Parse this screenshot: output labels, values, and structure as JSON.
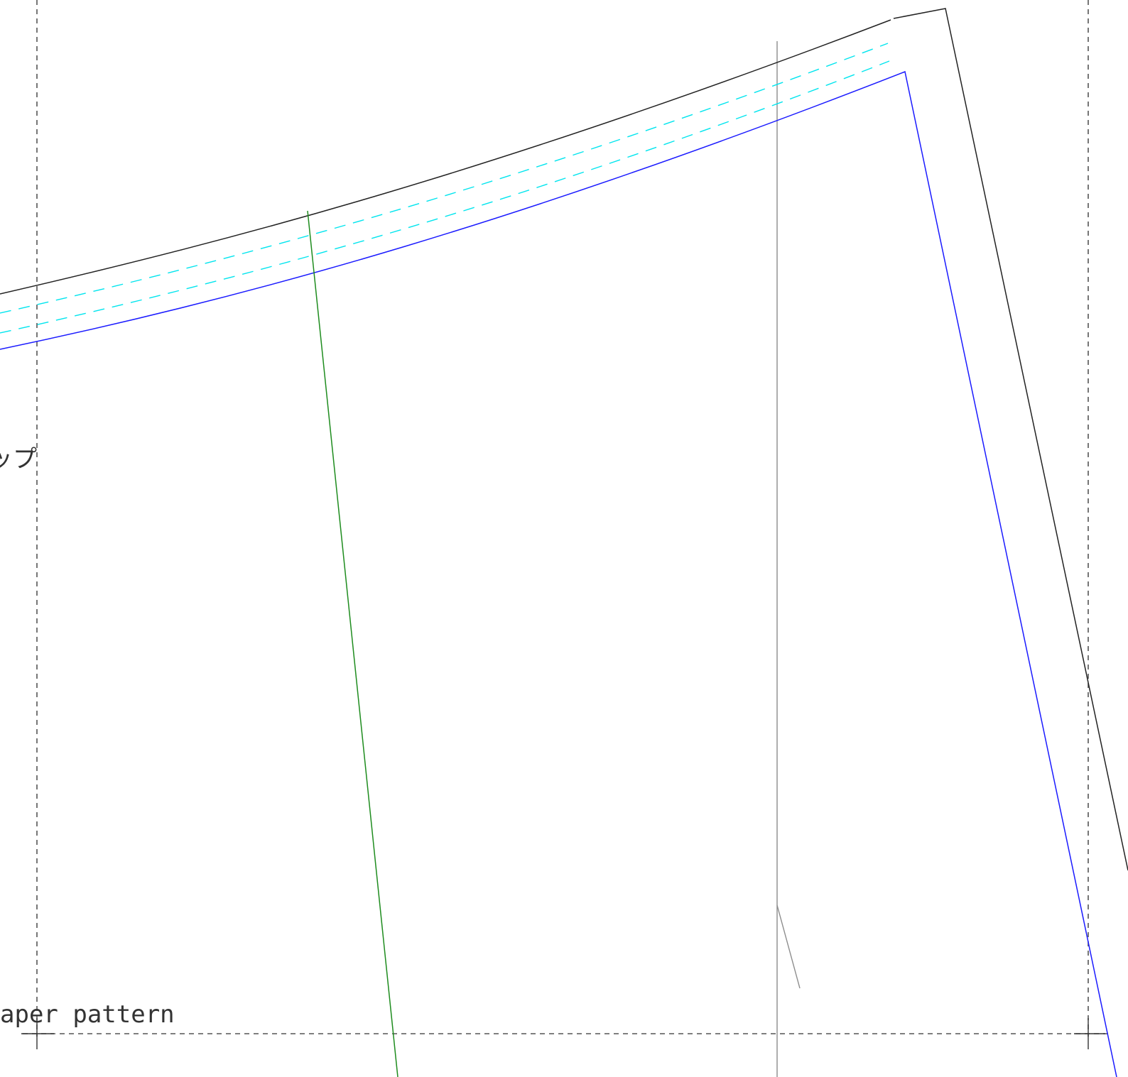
{
  "labels": {
    "partial_katakana": "ップ",
    "caption": "aper pattern"
  },
  "colors": {
    "cut_line": "#222222",
    "stitch_line": "#1a1aff",
    "fold_guides": "#00e5ee",
    "grain_line": "#1e8c1e",
    "reference_line": "#8c8c8c",
    "frame": "#555555"
  },
  "line_styles": {
    "frame": "dashed",
    "fold_guides": "dashed",
    "cut_line": "solid",
    "stitch_line": "solid",
    "grain_line": "solid",
    "reference_line": "solid"
  }
}
